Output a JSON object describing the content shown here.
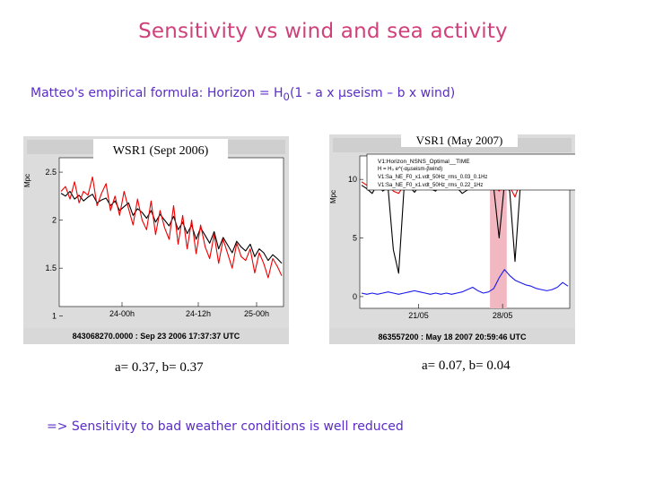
{
  "slide": {
    "title": "Sensitivity vs wind and sea activity",
    "formula_prefix": "Matteo's empirical formula: Horizon = H",
    "formula_sub": "0",
    "formula_suffix": "(1 - a x µseism – b x wind)",
    "conclusion": "=> Sensitivity to bad weather conditions is well reduced"
  },
  "chart_data": [
    {
      "type": "line",
      "title": "WSR1 (Sept 2006)",
      "ylabel": "Mpc",
      "ylim": [
        1.1,
        2.65
      ],
      "yticks": [
        "2.5",
        "2",
        "1.5",
        "1"
      ],
      "yticks_values": [
        2.5,
        2.0,
        1.5,
        1.0
      ],
      "x_ticklabels": [
        "24-00h",
        "24-12h",
        "25-00h"
      ],
      "footer": "843068270.0000 : Sep 23 2006 17:37:37 UTC",
      "caption": "a= 0.37, b= 0.37",
      "series": [
        {
          "color": "#000000",
          "values": [
            2.28,
            2.25,
            2.3,
            2.22,
            2.26,
            2.2,
            2.24,
            2.27,
            2.18,
            2.21,
            2.23,
            2.15,
            2.2,
            2.1,
            2.14,
            2.18,
            2.05,
            2.12,
            2.08,
            2.02,
            2.1,
            1.98,
            2.06,
            2.0,
            1.94,
            2.04,
            1.9,
            1.98,
            1.86,
            1.95,
            1.8,
            1.92,
            1.84,
            1.76,
            1.88,
            1.7,
            1.82,
            1.74,
            1.66,
            1.78,
            1.72,
            1.68,
            1.75,
            1.62,
            1.7,
            1.66,
            1.58,
            1.64,
            1.6,
            1.55
          ]
        },
        {
          "color": "#ee0000",
          "values": [
            2.3,
            2.35,
            2.22,
            2.4,
            2.18,
            2.3,
            2.26,
            2.45,
            2.15,
            2.28,
            2.38,
            2.1,
            2.25,
            2.05,
            2.3,
            2.12,
            1.95,
            2.22,
            2.0,
            1.9,
            2.2,
            1.85,
            2.1,
            1.92,
            1.8,
            2.15,
            1.75,
            2.05,
            1.7,
            2.0,
            1.65,
            1.95,
            1.72,
            1.6,
            1.85,
            1.55,
            1.8,
            1.65,
            1.5,
            1.76,
            1.62,
            1.58,
            1.7,
            1.45,
            1.66,
            1.55,
            1.4,
            1.6,
            1.52,
            1.42
          ]
        }
      ]
    },
    {
      "type": "line",
      "title": "VSR1 (May 2007)",
      "ylabel": "Mpc",
      "ylim": [
        -1,
        12
      ],
      "yticks": [
        "10",
        "5",
        "0"
      ],
      "yticks_values": [
        10,
        5,
        0
      ],
      "x_ticklabels": [
        "21/05",
        "28/05"
      ],
      "legend": [
        "V1:Horizon_NSNS_Optimal__TIME",
        "V1:Sa_NE_F0_x1.vdt_50Hz_rms_0.03_0.1Hz",
        "V1:Sa_NE_F0_x1.vdt_50Hz_rms_0.22_1Hz"
      ],
      "legend_formula": "H = H₀ e^(-αµseism-βwind)",
      "footer": "863557200 : May 18 2007 20:59:46 UTC",
      "caption": "a= 0.07, b= 0.04",
      "series": [
        {
          "color": "#000000",
          "values": [
            9.5,
            9.2,
            8.8,
            9.6,
            9.0,
            9.3,
            4.0,
            2.0,
            9.1,
            9.4,
            8.9,
            9.5,
            9.7,
            9.2,
            9.0,
            9.6,
            9.8,
            9.4,
            9.3,
            8.8,
            9.1,
            9.5,
            9.7,
            9.9,
            9.4,
            9.2,
            5.0,
            9.6,
            9.0,
            3.0,
            9.4,
            9.8,
            9.5,
            9.2,
            9.6,
            9.9,
            9.7,
            9.3,
            9.8,
            10.0
          ]
        },
        {
          "color": "#ee0000",
          "values": [
            9.8,
            9.5,
            9.2,
            9.8,
            9.4,
            9.6,
            9.0,
            8.8,
            9.5,
            9.7,
            9.3,
            9.8,
            10.0,
            9.6,
            9.4,
            9.9,
            10.1,
            9.7,
            9.6,
            9.2,
            9.5,
            9.8,
            10.0,
            10.2,
            9.8,
            9.6,
            9.0,
            10.0,
            9.4,
            8.5,
            9.8,
            10.2,
            9.9,
            9.6,
            10.0,
            10.3,
            10.1,
            9.7,
            10.2,
            10.4
          ]
        },
        {
          "color": "#1a1aee",
          "values": [
            0.3,
            0.2,
            0.3,
            0.2,
            0.3,
            0.4,
            0.3,
            0.2,
            0.3,
            0.4,
            0.5,
            0.4,
            0.3,
            0.2,
            0.3,
            0.2,
            0.3,
            0.2,
            0.3,
            0.4,
            0.6,
            0.8,
            0.5,
            0.3,
            0.4,
            0.7,
            1.6,
            2.3,
            1.8,
            1.4,
            1.2,
            1.0,
            0.9,
            0.7,
            0.6,
            0.5,
            0.6,
            0.8,
            1.2,
            0.9
          ]
        }
      ]
    }
  ]
}
